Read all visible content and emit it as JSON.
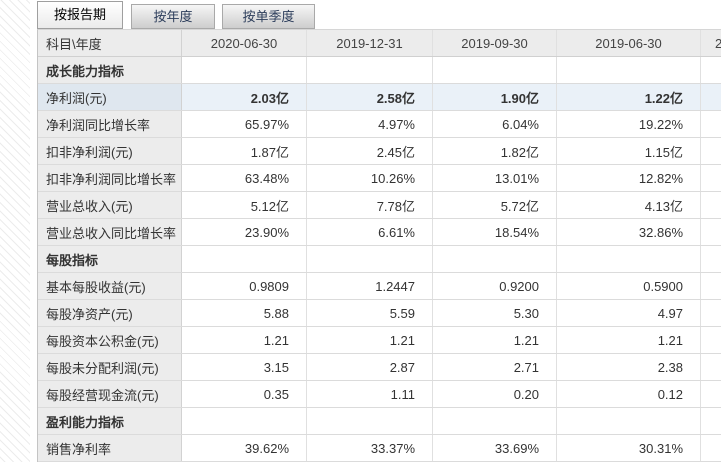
{
  "tabs": [
    {
      "name": "by-report-period",
      "label": "按报告期",
      "active": true
    },
    {
      "name": "by-year",
      "label": "按年度",
      "active": false
    },
    {
      "name": "by-single-quarter",
      "label": "按单季度",
      "active": false
    }
  ],
  "table": {
    "corner_label": "科目\\年度",
    "date_columns": [
      "2020-06-30",
      "2019-12-31",
      "2019-09-30",
      "2019-06-30"
    ],
    "partial_column_text": "2",
    "rows": [
      {
        "type": "section",
        "label": "成长能力指标"
      },
      {
        "type": "data",
        "label": "净利润(元)",
        "values": [
          "2.03亿",
          "2.58亿",
          "1.90亿",
          "1.22亿"
        ],
        "highlighted": true
      },
      {
        "type": "data",
        "label": "净利润同比增长率",
        "values": [
          "65.97%",
          "4.97%",
          "6.04%",
          "19.22%"
        ]
      },
      {
        "type": "data",
        "label": "扣非净利润(元)",
        "values": [
          "1.87亿",
          "2.45亿",
          "1.82亿",
          "1.15亿"
        ]
      },
      {
        "type": "data",
        "label": "扣非净利润同比增长率",
        "values": [
          "63.48%",
          "10.26%",
          "13.01%",
          "12.82%"
        ]
      },
      {
        "type": "data",
        "label": "营业总收入(元)",
        "values": [
          "5.12亿",
          "7.78亿",
          "5.72亿",
          "4.13亿"
        ]
      },
      {
        "type": "data",
        "label": "营业总收入同比增长率",
        "values": [
          "23.90%",
          "6.61%",
          "18.54%",
          "32.86%"
        ]
      },
      {
        "type": "section",
        "label": "每股指标"
      },
      {
        "type": "data",
        "label": "基本每股收益(元)",
        "values": [
          "0.9809",
          "1.2447",
          "0.9200",
          "0.5900"
        ]
      },
      {
        "type": "data",
        "label": "每股净资产(元)",
        "values": [
          "5.88",
          "5.59",
          "5.30",
          "4.97"
        ]
      },
      {
        "type": "data",
        "label": "每股资本公积金(元)",
        "values": [
          "1.21",
          "1.21",
          "1.21",
          "1.21"
        ]
      },
      {
        "type": "data",
        "label": "每股未分配利润(元)",
        "values": [
          "3.15",
          "2.87",
          "2.71",
          "2.38"
        ]
      },
      {
        "type": "data",
        "label": "每股经营现金流(元)",
        "values": [
          "0.35",
          "1.11",
          "0.20",
          "0.12"
        ]
      },
      {
        "type": "section",
        "label": "盈利能力指标"
      },
      {
        "type": "data",
        "label": "销售净利率",
        "values": [
          "39.62%",
          "33.37%",
          "33.69%",
          "30.31%"
        ]
      }
    ]
  },
  "colors": {
    "header_bg": "#ececec",
    "label_bg": "#ececec",
    "highlight_label_bg": "#dfe7ef",
    "highlight_value_bg": "#eaf1f8",
    "inactive_tab_text": "#2b3c5a",
    "border": "#dbdbdb"
  }
}
